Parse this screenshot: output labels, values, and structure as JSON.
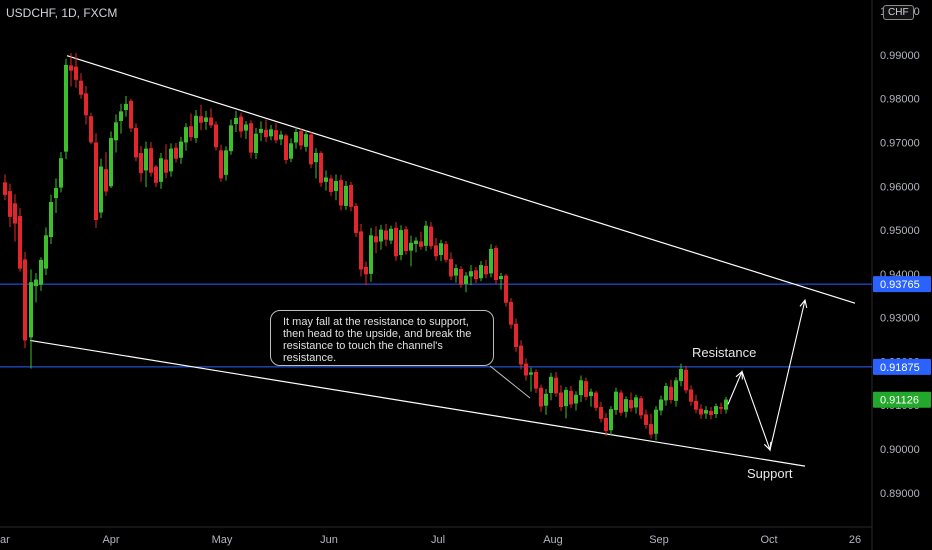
{
  "header": {
    "symbol_title": "USDCHF, 1D, FXCM",
    "currency_badge": "CHF"
  },
  "annotations": {
    "note": "It may fall at the resistance to support, then head to the upside, and break the resistance to touch the channel's resistance.",
    "resistance_label": "Resistance",
    "support_label": "Support"
  },
  "colors": {
    "background": "#000000",
    "up_candle": "#3cbf2a",
    "down_candle": "#e3262b",
    "level_line": "#2962ff",
    "last_price_badge": "#26a69a",
    "trendline": "#ffffff"
  },
  "chart_data": {
    "type": "candlestick",
    "symbol": "USDCHF",
    "timeframe": "1D",
    "source": "FXCM",
    "x_tick_labels": [
      "ar",
      "Apr",
      "May",
      "Jun",
      "Jul",
      "Aug",
      "Sep",
      "Oct",
      "26"
    ],
    "y_tick_labels": [
      "1.00000",
      "0.99000",
      "0.98000",
      "0.97000",
      "0.96000",
      "0.95000",
      "0.94000",
      "0.93000",
      "0.92000",
      "0.91000",
      "0.90000",
      "0.89000"
    ],
    "ylim": [
      0.8838,
      1.0007
    ],
    "price_levels": [
      {
        "name": "upper",
        "value": 0.93765,
        "label": "0.93765"
      },
      {
        "name": "resistance",
        "value": 0.91875,
        "label": "0.91875"
      }
    ],
    "last_price": {
      "value": 0.91126,
      "label": "0.91126"
    },
    "trendlines": [
      {
        "name": "channel-top",
        "from": [
          67,
          0.9898
        ],
        "to": [
          855,
          0.9333
        ]
      },
      {
        "name": "channel-bottom",
        "from": [
          30,
          0.9248
        ],
        "to": [
          805,
          0.8961
        ]
      }
    ],
    "projection_path": [
      [
        728,
        0.9102
      ],
      [
        742,
        0.9177
      ],
      [
        770,
        0.8998
      ],
      [
        805,
        0.934
      ]
    ],
    "candles": [
      {
        "x": 5,
        "o": 0.9609,
        "h": 0.9627,
        "l": 0.9568,
        "c": 0.958
      },
      {
        "x": 10,
        "o": 0.9589,
        "h": 0.9606,
        "l": 0.9507,
        "c": 0.953
      },
      {
        "x": 15,
        "o": 0.9561,
        "h": 0.9582,
        "l": 0.9474,
        "c": 0.9515
      },
      {
        "x": 20,
        "o": 0.9532,
        "h": 0.955,
        "l": 0.9405,
        "c": 0.9412
      },
      {
        "x": 25,
        "o": 0.9433,
        "h": 0.945,
        "l": 0.923,
        "c": 0.9248
      },
      {
        "x": 31,
        "o": 0.9255,
        "h": 0.941,
        "l": 0.9184,
        "c": 0.9381
      },
      {
        "x": 36,
        "o": 0.9372,
        "h": 0.9402,
        "l": 0.9335,
        "c": 0.9387
      },
      {
        "x": 41,
        "o": 0.9375,
        "h": 0.9438,
        "l": 0.9361,
        "c": 0.9432
      },
      {
        "x": 46,
        "o": 0.9412,
        "h": 0.9506,
        "l": 0.9397,
        "c": 0.9488
      },
      {
        "x": 51,
        "o": 0.9484,
        "h": 0.9581,
        "l": 0.9468,
        "c": 0.9564
      },
      {
        "x": 56,
        "o": 0.9573,
        "h": 0.9618,
        "l": 0.9539,
        "c": 0.9596
      },
      {
        "x": 61,
        "o": 0.9597,
        "h": 0.9678,
        "l": 0.9586,
        "c": 0.9664
      },
      {
        "x": 66,
        "o": 0.9679,
        "h": 0.9891,
        "l": 0.9662,
        "c": 0.9877
      },
      {
        "x": 71,
        "o": 0.9876,
        "h": 0.9904,
        "l": 0.9828,
        "c": 0.9864
      },
      {
        "x": 76,
        "o": 0.9873,
        "h": 0.9904,
        "l": 0.9825,
        "c": 0.9843
      },
      {
        "x": 81,
        "o": 0.9841,
        "h": 0.9858,
        "l": 0.98,
        "c": 0.9809
      },
      {
        "x": 86,
        "o": 0.9812,
        "h": 0.9829,
        "l": 0.9741,
        "c": 0.9762
      },
      {
        "x": 91,
        "o": 0.976,
        "h": 0.9768,
        "l": 0.9696,
        "c": 0.97
      },
      {
        "x": 96,
        "o": 0.97,
        "h": 0.9721,
        "l": 0.9505,
        "c": 0.9523
      },
      {
        "x": 101,
        "o": 0.954,
        "h": 0.9663,
        "l": 0.9527,
        "c": 0.9645
      },
      {
        "x": 106,
        "o": 0.9639,
        "h": 0.9678,
        "l": 0.9578,
        "c": 0.9588
      },
      {
        "x": 111,
        "o": 0.96,
        "h": 0.9725,
        "l": 0.9596,
        "c": 0.971
      },
      {
        "x": 116,
        "o": 0.9705,
        "h": 0.9764,
        "l": 0.9677,
        "c": 0.9746
      },
      {
        "x": 121,
        "o": 0.9749,
        "h": 0.9788,
        "l": 0.972,
        "c": 0.9771
      },
      {
        "x": 126,
        "o": 0.9774,
        "h": 0.9806,
        "l": 0.9759,
        "c": 0.9788
      },
      {
        "x": 131,
        "o": 0.9795,
        "h": 0.98,
        "l": 0.9724,
        "c": 0.9732
      },
      {
        "x": 136,
        "o": 0.9733,
        "h": 0.9744,
        "l": 0.9657,
        "c": 0.9666
      },
      {
        "x": 141,
        "o": 0.9676,
        "h": 0.9692,
        "l": 0.961,
        "c": 0.963
      },
      {
        "x": 146,
        "o": 0.9636,
        "h": 0.9702,
        "l": 0.9598,
        "c": 0.9686
      },
      {
        "x": 151,
        "o": 0.9687,
        "h": 0.9701,
        "l": 0.9622,
        "c": 0.9631
      },
      {
        "x": 156,
        "o": 0.9645,
        "h": 0.9649,
        "l": 0.9598,
        "c": 0.9608
      },
      {
        "x": 161,
        "o": 0.961,
        "h": 0.9676,
        "l": 0.9594,
        "c": 0.9664
      },
      {
        "x": 166,
        "o": 0.9661,
        "h": 0.9696,
        "l": 0.9618,
        "c": 0.9631
      },
      {
        "x": 171,
        "o": 0.9634,
        "h": 0.9698,
        "l": 0.9622,
        "c": 0.9686
      },
      {
        "x": 176,
        "o": 0.9688,
        "h": 0.9699,
        "l": 0.9654,
        "c": 0.9663
      },
      {
        "x": 181,
        "o": 0.9665,
        "h": 0.9713,
        "l": 0.9651,
        "c": 0.9702
      },
      {
        "x": 186,
        "o": 0.97,
        "h": 0.9744,
        "l": 0.9681,
        "c": 0.9735
      },
      {
        "x": 191,
        "o": 0.9737,
        "h": 0.9766,
        "l": 0.9703,
        "c": 0.9712
      },
      {
        "x": 196,
        "o": 0.971,
        "h": 0.9774,
        "l": 0.9699,
        "c": 0.9761
      },
      {
        "x": 201,
        "o": 0.976,
        "h": 0.9786,
        "l": 0.9728,
        "c": 0.9745
      },
      {
        "x": 206,
        "o": 0.9747,
        "h": 0.9772,
        "l": 0.9729,
        "c": 0.9757
      },
      {
        "x": 211,
        "o": 0.9757,
        "h": 0.9778,
        "l": 0.9733,
        "c": 0.9739
      },
      {
        "x": 216,
        "o": 0.9741,
        "h": 0.9748,
        "l": 0.9681,
        "c": 0.9689
      },
      {
        "x": 221,
        "o": 0.9682,
        "h": 0.9695,
        "l": 0.961,
        "c": 0.9618
      },
      {
        "x": 226,
        "o": 0.9626,
        "h": 0.9691,
        "l": 0.9613,
        "c": 0.9682
      },
      {
        "x": 231,
        "o": 0.968,
        "h": 0.9752,
        "l": 0.9672,
        "c": 0.9739
      },
      {
        "x": 236,
        "o": 0.9742,
        "h": 0.9772,
        "l": 0.9724,
        "c": 0.9756
      },
      {
        "x": 241,
        "o": 0.9759,
        "h": 0.9768,
        "l": 0.9711,
        "c": 0.9725
      },
      {
        "x": 246,
        "o": 0.9727,
        "h": 0.9749,
        "l": 0.9708,
        "c": 0.9741
      },
      {
        "x": 251,
        "o": 0.9744,
        "h": 0.9751,
        "l": 0.9664,
        "c": 0.9677
      },
      {
        "x": 256,
        "o": 0.9676,
        "h": 0.9733,
        "l": 0.9662,
        "c": 0.972
      },
      {
        "x": 261,
        "o": 0.9722,
        "h": 0.9748,
        "l": 0.9703,
        "c": 0.9731
      },
      {
        "x": 266,
        "o": 0.9729,
        "h": 0.9752,
        "l": 0.9701,
        "c": 0.9712
      },
      {
        "x": 271,
        "o": 0.9714,
        "h": 0.974,
        "l": 0.9705,
        "c": 0.973
      },
      {
        "x": 276,
        "o": 0.9728,
        "h": 0.9744,
        "l": 0.9698,
        "c": 0.9705
      },
      {
        "x": 281,
        "o": 0.9707,
        "h": 0.9727,
        "l": 0.9694,
        "c": 0.9718
      },
      {
        "x": 286,
        "o": 0.9716,
        "h": 0.972,
        "l": 0.9651,
        "c": 0.966
      },
      {
        "x": 291,
        "o": 0.9663,
        "h": 0.9709,
        "l": 0.9655,
        "c": 0.9698
      },
      {
        "x": 296,
        "o": 0.97,
        "h": 0.9736,
        "l": 0.9686,
        "c": 0.9724
      },
      {
        "x": 301,
        "o": 0.9726,
        "h": 0.9731,
        "l": 0.9683,
        "c": 0.9693
      },
      {
        "x": 306,
        "o": 0.969,
        "h": 0.9728,
        "l": 0.9679,
        "c": 0.9719
      },
      {
        "x": 311,
        "o": 0.9718,
        "h": 0.9724,
        "l": 0.9641,
        "c": 0.965
      },
      {
        "x": 316,
        "o": 0.9655,
        "h": 0.9687,
        "l": 0.9618,
        "c": 0.9676
      },
      {
        "x": 321,
        "o": 0.9676,
        "h": 0.968,
        "l": 0.9599,
        "c": 0.9608
      },
      {
        "x": 326,
        "o": 0.961,
        "h": 0.9636,
        "l": 0.959,
        "c": 0.962
      },
      {
        "x": 331,
        "o": 0.9618,
        "h": 0.9626,
        "l": 0.9578,
        "c": 0.9587
      },
      {
        "x": 336,
        "o": 0.9589,
        "h": 0.9627,
        "l": 0.9568,
        "c": 0.9612
      },
      {
        "x": 341,
        "o": 0.9614,
        "h": 0.9626,
        "l": 0.9545,
        "c": 0.9556
      },
      {
        "x": 346,
        "o": 0.9555,
        "h": 0.9612,
        "l": 0.9546,
        "c": 0.9601
      },
      {
        "x": 351,
        "o": 0.9603,
        "h": 0.961,
        "l": 0.9543,
        "c": 0.9553
      },
      {
        "x": 356,
        "o": 0.9555,
        "h": 0.9562,
        "l": 0.9484,
        "c": 0.9493
      },
      {
        "x": 361,
        "o": 0.9497,
        "h": 0.9514,
        "l": 0.9394,
        "c": 0.941
      },
      {
        "x": 366,
        "o": 0.9416,
        "h": 0.9428,
        "l": 0.9374,
        "c": 0.9399
      },
      {
        "x": 371,
        "o": 0.94,
        "h": 0.9505,
        "l": 0.9382,
        "c": 0.9488
      },
      {
        "x": 376,
        "o": 0.9486,
        "h": 0.9508,
        "l": 0.9447,
        "c": 0.9472
      },
      {
        "x": 381,
        "o": 0.9474,
        "h": 0.9512,
        "l": 0.9455,
        "c": 0.9501
      },
      {
        "x": 386,
        "o": 0.9499,
        "h": 0.9514,
        "l": 0.9463,
        "c": 0.9478
      },
      {
        "x": 391,
        "o": 0.9476,
        "h": 0.951,
        "l": 0.9468,
        "c": 0.9503
      },
      {
        "x": 396,
        "o": 0.9505,
        "h": 0.9518,
        "l": 0.943,
        "c": 0.944
      },
      {
        "x": 401,
        "o": 0.9443,
        "h": 0.9511,
        "l": 0.9431,
        "c": 0.95
      },
      {
        "x": 406,
        "o": 0.9502,
        "h": 0.9509,
        "l": 0.9444,
        "c": 0.9452
      },
      {
        "x": 411,
        "o": 0.9453,
        "h": 0.9487,
        "l": 0.9417,
        "c": 0.9471
      },
      {
        "x": 416,
        "o": 0.9468,
        "h": 0.9484,
        "l": 0.9449,
        "c": 0.9476
      },
      {
        "x": 421,
        "o": 0.9474,
        "h": 0.9496,
        "l": 0.9455,
        "c": 0.9462
      },
      {
        "x": 426,
        "o": 0.9464,
        "h": 0.9521,
        "l": 0.9452,
        "c": 0.951
      },
      {
        "x": 431,
        "o": 0.9508,
        "h": 0.9518,
        "l": 0.9456,
        "c": 0.9463
      },
      {
        "x": 436,
        "o": 0.9465,
        "h": 0.9482,
        "l": 0.943,
        "c": 0.944
      },
      {
        "x": 441,
        "o": 0.9443,
        "h": 0.9478,
        "l": 0.9429,
        "c": 0.947
      },
      {
        "x": 446,
        "o": 0.9468,
        "h": 0.9475,
        "l": 0.9426,
        "c": 0.9432
      },
      {
        "x": 451,
        "o": 0.9434,
        "h": 0.9449,
        "l": 0.9386,
        "c": 0.9394
      },
      {
        "x": 456,
        "o": 0.9396,
        "h": 0.9422,
        "l": 0.938,
        "c": 0.9413
      },
      {
        "x": 461,
        "o": 0.9411,
        "h": 0.9418,
        "l": 0.9368,
        "c": 0.9375
      },
      {
        "x": 466,
        "o": 0.9377,
        "h": 0.9404,
        "l": 0.9358,
        "c": 0.9396
      },
      {
        "x": 471,
        "o": 0.9394,
        "h": 0.942,
        "l": 0.9374,
        "c": 0.9406
      },
      {
        "x": 476,
        "o": 0.9408,
        "h": 0.9416,
        "l": 0.9379,
        "c": 0.9388
      },
      {
        "x": 481,
        "o": 0.939,
        "h": 0.9429,
        "l": 0.9383,
        "c": 0.942
      },
      {
        "x": 486,
        "o": 0.9418,
        "h": 0.9432,
        "l": 0.939,
        "c": 0.9399
      },
      {
        "x": 491,
        "o": 0.9401,
        "h": 0.9468,
        "l": 0.9392,
        "c": 0.9457
      },
      {
        "x": 496,
        "o": 0.9459,
        "h": 0.9465,
        "l": 0.9376,
        "c": 0.9386
      },
      {
        "x": 501,
        "o": 0.9388,
        "h": 0.9402,
        "l": 0.9364,
        "c": 0.9395
      },
      {
        "x": 506,
        "o": 0.9396,
        "h": 0.94,
        "l": 0.9325,
        "c": 0.9334
      },
      {
        "x": 511,
        "o": 0.9336,
        "h": 0.9345,
        "l": 0.9275,
        "c": 0.9284
      },
      {
        "x": 516,
        "o": 0.9286,
        "h": 0.9298,
        "l": 0.9222,
        "c": 0.9233
      },
      {
        "x": 521,
        "o": 0.9236,
        "h": 0.9248,
        "l": 0.9182,
        "c": 0.9193
      },
      {
        "x": 526,
        "o": 0.9195,
        "h": 0.9207,
        "l": 0.9156,
        "c": 0.9168
      },
      {
        "x": 531,
        "o": 0.917,
        "h": 0.9186,
        "l": 0.9131,
        "c": 0.9175
      },
      {
        "x": 536,
        "o": 0.9176,
        "h": 0.9182,
        "l": 0.9128,
        "c": 0.9138
      },
      {
        "x": 541,
        "o": 0.914,
        "h": 0.9147,
        "l": 0.9085,
        "c": 0.9097
      },
      {
        "x": 546,
        "o": 0.9099,
        "h": 0.9137,
        "l": 0.9078,
        "c": 0.9126
      },
      {
        "x": 551,
        "o": 0.9128,
        "h": 0.9174,
        "l": 0.9111,
        "c": 0.9165
      },
      {
        "x": 556,
        "o": 0.9163,
        "h": 0.9176,
        "l": 0.9119,
        "c": 0.9127
      },
      {
        "x": 561,
        "o": 0.9129,
        "h": 0.9146,
        "l": 0.9087,
        "c": 0.9096
      },
      {
        "x": 566,
        "o": 0.9098,
        "h": 0.9142,
        "l": 0.907,
        "c": 0.9135
      },
      {
        "x": 571,
        "o": 0.9133,
        "h": 0.9144,
        "l": 0.9094,
        "c": 0.9102
      },
      {
        "x": 576,
        "o": 0.9104,
        "h": 0.9132,
        "l": 0.9088,
        "c": 0.9124
      },
      {
        "x": 581,
        "o": 0.9123,
        "h": 0.9168,
        "l": 0.9107,
        "c": 0.9157
      },
      {
        "x": 586,
        "o": 0.9155,
        "h": 0.9163,
        "l": 0.9111,
        "c": 0.9119
      },
      {
        "x": 591,
        "o": 0.9121,
        "h": 0.9138,
        "l": 0.9097,
        "c": 0.9131
      },
      {
        "x": 596,
        "o": 0.9129,
        "h": 0.9133,
        "l": 0.9087,
        "c": 0.9094
      },
      {
        "x": 601,
        "o": 0.9096,
        "h": 0.9108,
        "l": 0.9061,
        "c": 0.9069
      },
      {
        "x": 606,
        "o": 0.9071,
        "h": 0.9082,
        "l": 0.903,
        "c": 0.9041
      },
      {
        "x": 611,
        "o": 0.9043,
        "h": 0.9098,
        "l": 0.9032,
        "c": 0.9091
      },
      {
        "x": 616,
        "o": 0.9089,
        "h": 0.914,
        "l": 0.9078,
        "c": 0.9131
      },
      {
        "x": 621,
        "o": 0.9129,
        "h": 0.9135,
        "l": 0.9076,
        "c": 0.9083
      },
      {
        "x": 626,
        "o": 0.9085,
        "h": 0.912,
        "l": 0.9072,
        "c": 0.9114
      },
      {
        "x": 631,
        "o": 0.9112,
        "h": 0.9129,
        "l": 0.9085,
        "c": 0.9093
      },
      {
        "x": 636,
        "o": 0.9095,
        "h": 0.9124,
        "l": 0.9081,
        "c": 0.9118
      },
      {
        "x": 641,
        "o": 0.9116,
        "h": 0.9121,
        "l": 0.9069,
        "c": 0.9077
      },
      {
        "x": 646,
        "o": 0.9079,
        "h": 0.909,
        "l": 0.9046,
        "c": 0.9055
      },
      {
        "x": 651,
        "o": 0.9057,
        "h": 0.9081,
        "l": 0.9024,
        "c": 0.9033
      },
      {
        "x": 656,
        "o": 0.9035,
        "h": 0.9098,
        "l": 0.902,
        "c": 0.909
      },
      {
        "x": 661,
        "o": 0.9088,
        "h": 0.9122,
        "l": 0.9077,
        "c": 0.9113
      },
      {
        "x": 666,
        "o": 0.9111,
        "h": 0.9151,
        "l": 0.9099,
        "c": 0.9144
      },
      {
        "x": 671,
        "o": 0.9142,
        "h": 0.9158,
        "l": 0.9104,
        "c": 0.9112
      },
      {
        "x": 676,
        "o": 0.911,
        "h": 0.9164,
        "l": 0.9097,
        "c": 0.9157
      },
      {
        "x": 681,
        "o": 0.9155,
        "h": 0.9195,
        "l": 0.9143,
        "c": 0.9183
      },
      {
        "x": 686,
        "o": 0.9181,
        "h": 0.919,
        "l": 0.9127,
        "c": 0.9134
      },
      {
        "x": 691,
        "o": 0.9136,
        "h": 0.9145,
        "l": 0.9099,
        "c": 0.9108
      },
      {
        "x": 696,
        "o": 0.911,
        "h": 0.9124,
        "l": 0.9082,
        "c": 0.909
      },
      {
        "x": 701,
        "o": 0.9092,
        "h": 0.9102,
        "l": 0.9069,
        "c": 0.9079
      },
      {
        "x": 706,
        "o": 0.9081,
        "h": 0.9098,
        "l": 0.9069,
        "c": 0.9089
      },
      {
        "x": 711,
        "o": 0.9087,
        "h": 0.9096,
        "l": 0.9068,
        "c": 0.9078
      },
      {
        "x": 716,
        "o": 0.908,
        "h": 0.9104,
        "l": 0.9071,
        "c": 0.9098
      },
      {
        "x": 721,
        "o": 0.9096,
        "h": 0.9106,
        "l": 0.908,
        "c": 0.9092
      },
      {
        "x": 726,
        "o": 0.909,
        "h": 0.9119,
        "l": 0.9081,
        "c": 0.9113
      }
    ]
  }
}
